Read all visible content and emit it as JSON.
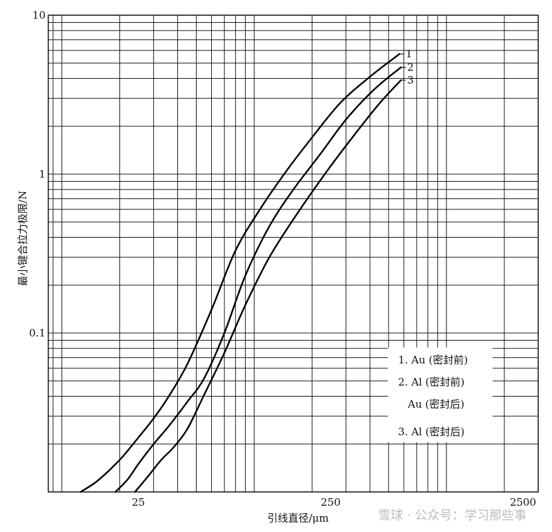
{
  "chart_data": {
    "type": "line",
    "xscale": "log",
    "yscale": "log",
    "xlim": [
      8.5,
      3000
    ],
    "ylim": [
      0.01,
      10
    ],
    "xlabel": "引线直径/μm",
    "ylabel": "最小键合拉力极限/N",
    "x_ticks": [
      {
        "value": 25,
        "label": "25"
      },
      {
        "value": 250,
        "label": "250"
      },
      {
        "value": 2500,
        "label": "2500"
      }
    ],
    "y_ticks": [
      {
        "value": 10,
        "label": "10"
      },
      {
        "value": 1,
        "label": "1"
      },
      {
        "value": 0.1,
        "label": "0.1"
      }
    ],
    "grid": true,
    "series": [
      {
        "name": "1",
        "x": [
          12.5,
          15,
          18,
          21,
          25,
          30,
          36,
          45,
          60,
          80,
          110,
          150,
          200,
          280,
          400,
          570
        ],
        "y": [
          0.01,
          0.0115,
          0.014,
          0.017,
          0.022,
          0.029,
          0.04,
          0.064,
          0.14,
          0.33,
          0.63,
          1.08,
          1.7,
          2.8,
          4.1,
          5.7
        ]
      },
      {
        "name": "2",
        "x": [
          19,
          22,
          25,
          30,
          36,
          45,
          55,
          70,
          90,
          120,
          160,
          220,
          300,
          420,
          580
        ],
        "y": [
          0.01,
          0.012,
          0.015,
          0.02,
          0.026,
          0.037,
          0.052,
          0.1,
          0.23,
          0.47,
          0.8,
          1.33,
          2.2,
          3.4,
          4.7
        ]
      },
      {
        "name": "3",
        "x": [
          24,
          28,
          33,
          38,
          45,
          55,
          70,
          90,
          120,
          170,
          240,
          330,
          450,
          580
        ],
        "y": [
          0.01,
          0.0125,
          0.016,
          0.019,
          0.025,
          0.041,
          0.075,
          0.15,
          0.3,
          0.58,
          1.05,
          1.75,
          2.8,
          3.9
        ]
      }
    ],
    "legend": {
      "placement": "bottom-right",
      "entries": [
        "1. Au (密封前)",
        "2. Al (密封前)",
        "Au (密封后)",
        "3. Al (密封后)"
      ]
    }
  },
  "watermark": "雪球 · 公众号：学习那些事"
}
